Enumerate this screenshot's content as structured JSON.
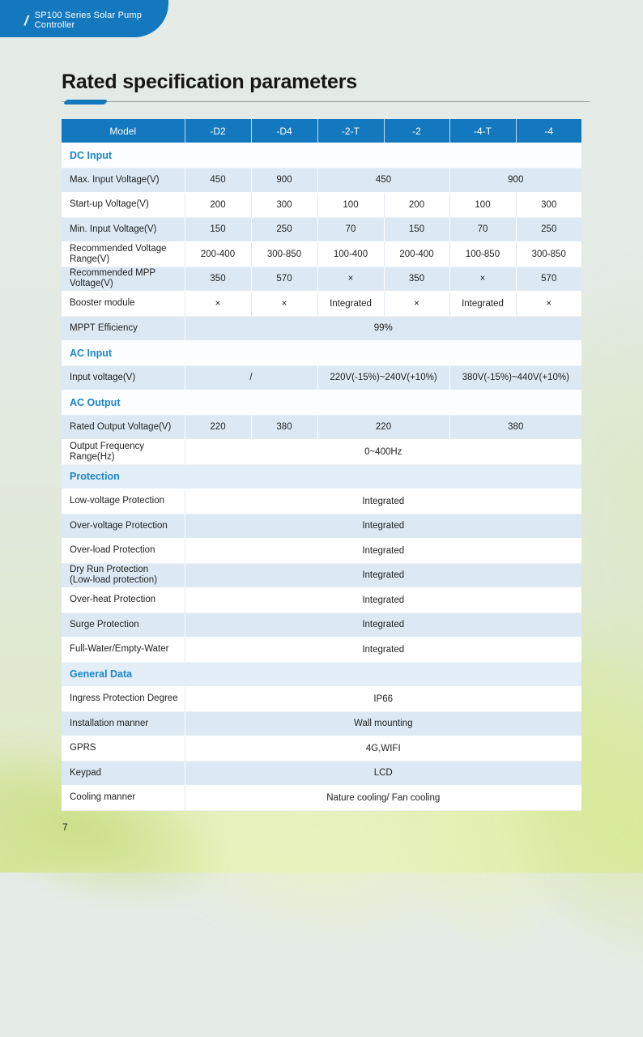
{
  "badge": {
    "slash": "/",
    "title": "SP100 Series Solar Pump Controller"
  },
  "page": {
    "title": "Rated specification parameters",
    "number": "7"
  },
  "colors": {
    "header_blue": "#1478be",
    "accent": "#1478be",
    "section_text": "#1a87c9",
    "row_blue": "#dce9f5"
  },
  "table": {
    "header": [
      "Model",
      "-D2",
      "-D4",
      "-2-T",
      "-2",
      "-4-T",
      "-4"
    ],
    "rows": [
      {
        "type": "section",
        "shade": "white",
        "label": "DC Input"
      },
      {
        "type": "data",
        "shade": "blue",
        "label": "Max. Input Voltage(V)",
        "cells": [
          {
            "text": "450",
            "span": 1
          },
          {
            "text": "900",
            "span": 1
          },
          {
            "text": "450",
            "span": 2
          },
          {
            "text": "900",
            "span": 2
          }
        ]
      },
      {
        "type": "data",
        "shade": "white",
        "label": "Start-up Voltage(V)",
        "cells": [
          {
            "text": "200",
            "span": 1
          },
          {
            "text": "300",
            "span": 1
          },
          {
            "text": "100",
            "span": 1
          },
          {
            "text": "200",
            "span": 1
          },
          {
            "text": "100",
            "span": 1
          },
          {
            "text": "300",
            "span": 1
          }
        ]
      },
      {
        "type": "data",
        "shade": "blue",
        "label": "Min. Input Voltage(V)",
        "cells": [
          {
            "text": "150",
            "span": 1
          },
          {
            "text": "250",
            "span": 1
          },
          {
            "text": "70",
            "span": 1
          },
          {
            "text": "150",
            "span": 1
          },
          {
            "text": "70",
            "span": 1
          },
          {
            "text": "250",
            "span": 1
          }
        ]
      },
      {
        "type": "data",
        "shade": "white",
        "label": "Recommended Voltage\nRange(V)",
        "cells": [
          {
            "text": "200-400",
            "span": 1
          },
          {
            "text": "300-850",
            "span": 1
          },
          {
            "text": "100-400",
            "span": 1
          },
          {
            "text": "200-400",
            "span": 1
          },
          {
            "text": "100-850",
            "span": 1
          },
          {
            "text": "300-850",
            "span": 1
          }
        ]
      },
      {
        "type": "data",
        "shade": "blue",
        "label": "Recommended MPP\nVoltage(V)",
        "cells": [
          {
            "text": "350",
            "span": 1
          },
          {
            "text": "570",
            "span": 1
          },
          {
            "text": "×",
            "span": 1
          },
          {
            "text": "350",
            "span": 1
          },
          {
            "text": "×",
            "span": 1
          },
          {
            "text": "570",
            "span": 1
          }
        ]
      },
      {
        "type": "data",
        "shade": "white",
        "label": "Booster module",
        "cells": [
          {
            "text": "×",
            "span": 1
          },
          {
            "text": "×",
            "span": 1
          },
          {
            "text": "Integrated",
            "span": 1
          },
          {
            "text": "×",
            "span": 1
          },
          {
            "text": "Integrated",
            "span": 1
          },
          {
            "text": "×",
            "span": 1
          }
        ]
      },
      {
        "type": "data",
        "shade": "blue",
        "label": "MPPT Efficiency",
        "cells": [
          {
            "text": "99%",
            "span": 6
          }
        ]
      },
      {
        "type": "section",
        "shade": "white",
        "label": "AC Input"
      },
      {
        "type": "data",
        "shade": "blue",
        "label": "Input voltage(V)",
        "cells": [
          {
            "text": "/",
            "span": 2
          },
          {
            "text": "220V(-15%)~240V(+10%)",
            "span": 2
          },
          {
            "text": "380V(-15%)~440V(+10%)",
            "span": 2
          }
        ]
      },
      {
        "type": "section",
        "shade": "white",
        "label": "AC Output"
      },
      {
        "type": "data",
        "shade": "blue",
        "label": "Rated Output Voltage(V)",
        "cells": [
          {
            "text": "220",
            "span": 1
          },
          {
            "text": "380",
            "span": 1
          },
          {
            "text": "220",
            "span": 2
          },
          {
            "text": "380",
            "span": 2
          }
        ]
      },
      {
        "type": "data",
        "shade": "white",
        "label": "Output Frequency\nRange(Hz)",
        "cells": [
          {
            "text": "0~400Hz",
            "span": 6
          }
        ]
      },
      {
        "type": "section",
        "shade": "blue",
        "label": "Protection"
      },
      {
        "type": "data",
        "shade": "white",
        "label": "Low-voltage Protection",
        "cells": [
          {
            "text": "Integrated",
            "span": 6
          }
        ]
      },
      {
        "type": "data",
        "shade": "blue",
        "label": "Over-voltage Protection",
        "cells": [
          {
            "text": "Integrated",
            "span": 6
          }
        ]
      },
      {
        "type": "data",
        "shade": "white",
        "label": "Over-load Protection",
        "cells": [
          {
            "text": "Integrated",
            "span": 6
          }
        ]
      },
      {
        "type": "data",
        "shade": "blue",
        "label": "Dry Run Protection\n(Low-load protection)",
        "cells": [
          {
            "text": "Integrated",
            "span": 6
          }
        ]
      },
      {
        "type": "data",
        "shade": "white",
        "label": "Over-heat Protection",
        "cells": [
          {
            "text": "Integrated",
            "span": 6
          }
        ]
      },
      {
        "type": "data",
        "shade": "blue",
        "label": "Surge Protection",
        "cells": [
          {
            "text": "Integrated",
            "span": 6
          }
        ]
      },
      {
        "type": "data",
        "shade": "white",
        "label": "Full-Water/Empty-Water",
        "cells": [
          {
            "text": "Integrated",
            "span": 6
          }
        ]
      },
      {
        "type": "section",
        "shade": "blue",
        "label": "General Data"
      },
      {
        "type": "data",
        "shade": "white",
        "label": "Ingress Protection Degree",
        "cells": [
          {
            "text": "IP66",
            "span": 6
          }
        ]
      },
      {
        "type": "data",
        "shade": "blue",
        "label": "Installation manner",
        "cells": [
          {
            "text": "Wall mounting",
            "span": 6
          }
        ]
      },
      {
        "type": "data",
        "shade": "white",
        "label": "GPRS",
        "cells": [
          {
            "text": "4G,WIFI",
            "span": 6
          }
        ]
      },
      {
        "type": "data",
        "shade": "blue",
        "label": "Keypad",
        "cells": [
          {
            "text": "LCD",
            "span": 6
          }
        ]
      },
      {
        "type": "data",
        "shade": "white",
        "label": "Cooling manner",
        "cells": [
          {
            "text": "Nature cooling/ Fan cooling",
            "span": 6
          }
        ]
      }
    ]
  }
}
